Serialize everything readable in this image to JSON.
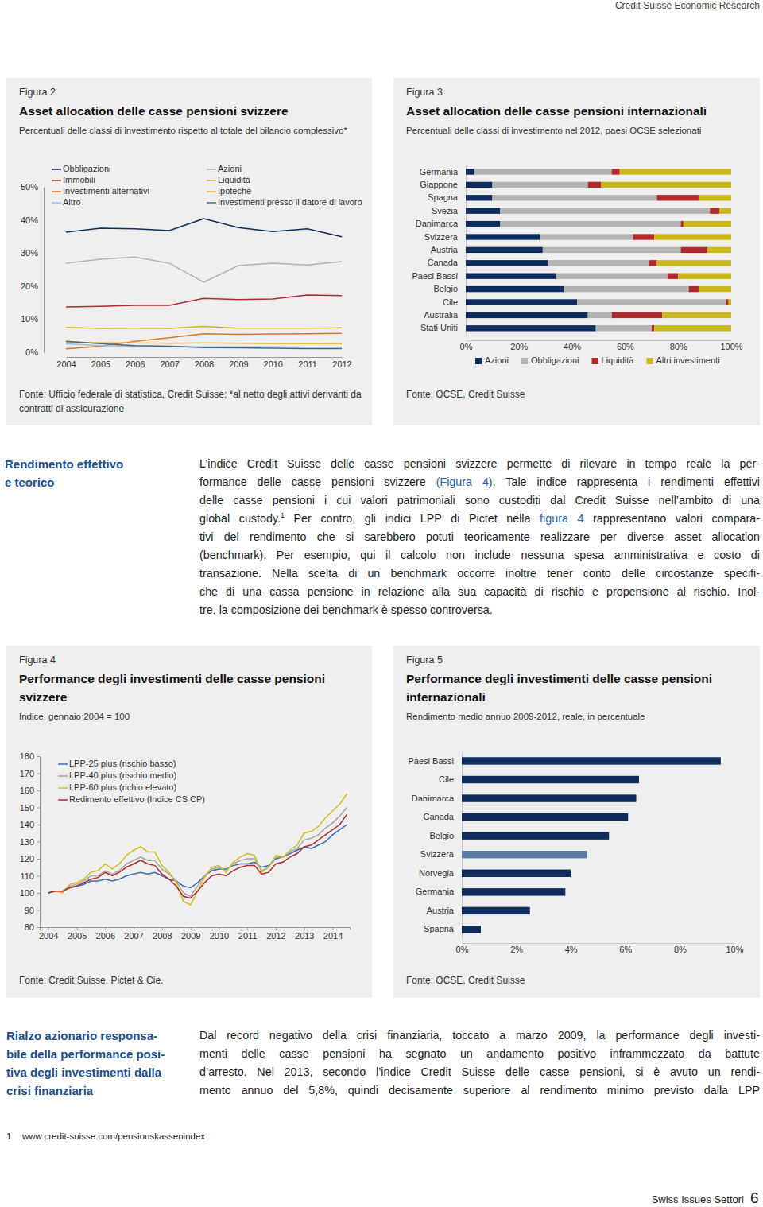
{
  "header": {
    "text": "Credit Suisse Economic Research"
  },
  "chart_data": [
    {
      "type": "line",
      "figure": "Figura 2",
      "title": [
        "Asset allocation delle casse pensioni svizzere"
      ],
      "subtitle": "Percentuali delle classi di investimento rispetto al totale del bilancio complessivo*",
      "source": [
        "Fonte: Ufficio federale di statistica, Credit Suisse; *al netto degli attivi derivanti da",
        "contratti di assicurazione"
      ],
      "categories": [
        "2004",
        "2005",
        "2006",
        "2007",
        "2008",
        "2009",
        "2010",
        "2011",
        "2012"
      ],
      "ylim": [
        0,
        50
      ],
      "yticks": [
        {
          "value": 0,
          "label": "0%"
        },
        {
          "value": 10,
          "label": "10%"
        },
        {
          "value": 20,
          "label": "20%"
        },
        {
          "value": 30,
          "label": "30%"
        },
        {
          "value": 40,
          "label": "40%"
        },
        {
          "value": 50,
          "label": "50%"
        }
      ],
      "legend": "top",
      "series": [
        {
          "name": "Obbligazioni",
          "color": "#0e2c5c",
          "values": [
            36.3,
            37.5,
            37.3,
            36.8,
            40.4,
            37.7,
            36.5,
            37.3,
            34.9
          ]
        },
        {
          "name": "Immobili",
          "color": "#b12a2f",
          "values": [
            13.7,
            13.9,
            14.2,
            14.2,
            16.3,
            15.9,
            16.1,
            17.3,
            17.1
          ]
        },
        {
          "name": "Investimenti alternativi",
          "color": "#e2731e",
          "values": [
            1.0,
            1.8,
            3.3,
            4.4,
            5.6,
            5.4,
            5.5,
            5.6,
            5.7
          ]
        },
        {
          "name": "Altro",
          "color": "#8fc3df",
          "values": [
            2.5,
            2.0,
            1.8,
            1.7,
            1.6,
            1.6,
            1.6,
            1.5,
            1.5
          ]
        },
        {
          "name": "Azioni",
          "color": "#b3b3b3",
          "values": [
            26.9,
            28.1,
            28.8,
            26.9,
            21.2,
            26.2,
            26.9,
            26.4,
            27.4
          ]
        },
        {
          "name": "Liquidità",
          "color": "#c9b81c",
          "values": [
            7.5,
            7.2,
            7.3,
            7.2,
            7.8,
            7.3,
            7.3,
            7.3,
            7.4
          ]
        },
        {
          "name": "Ipoteche",
          "color": "#f2b63c",
          "values": [
            3.0,
            2.9,
            2.8,
            2.7,
            2.8,
            2.7,
            2.6,
            2.6,
            2.5
          ]
        },
        {
          "name": "Investimenti presso il datore di lavoro",
          "color": "#53657d",
          "values": [
            3.3,
            2.6,
            2.0,
            1.8,
            1.4,
            1.3,
            1.2,
            1.1,
            1.1
          ]
        }
      ]
    },
    {
      "type": "bar",
      "orientation": "horizontal",
      "stacked": true,
      "figure": "Figura 3",
      "title": [
        "Asset allocation delle casse pensioni internazionali"
      ],
      "subtitle": "Percentuali delle classi di investimento nel 2012, paesi OCSE selezionati",
      "source": [
        "Fonte: OCSE, Credit Suisse"
      ],
      "categories": [
        "Germania",
        "Giappone",
        "Spagna",
        "Svezia",
        "Danimarca",
        "Svizzera",
        "Austria",
        "Canada",
        "Paesi Bassi",
        "Belgio",
        "Cile",
        "Australia",
        "Stati Uniti"
      ],
      "xlim": [
        0,
        100
      ],
      "xticks": [
        {
          "value": 0,
          "label": "0%"
        },
        {
          "value": 20,
          "label": "20%"
        },
        {
          "value": 40,
          "label": "40%"
        },
        {
          "value": 60,
          "label": "60%"
        },
        {
          "value": 80,
          "label": "80%"
        },
        {
          "value": 100,
          "label": "100%"
        }
      ],
      "legend": "bottom",
      "series": [
        {
          "name": "Azioni",
          "color": "#0e2c5c",
          "values": [
            3,
            10,
            10,
            13,
            13,
            28,
            29,
            31,
            34,
            37,
            42,
            46,
            49
          ]
        },
        {
          "name": "Obbligazioni",
          "color": "#b3b3b3",
          "values": [
            52,
            36,
            62,
            79,
            68,
            35,
            52,
            38,
            42,
            47,
            56,
            9,
            21
          ]
        },
        {
          "name": "Liquidità",
          "color": "#b12a2f",
          "values": [
            3,
            5,
            16,
            3.5,
            1,
            8,
            10,
            3,
            4,
            4,
            1,
            19,
            1
          ]
        },
        {
          "name": "Altri investimenti",
          "color": "#c9b81c",
          "values": [
            42,
            49,
            12,
            4.5,
            18,
            29,
            9,
            28,
            20,
            12,
            1,
            26,
            29
          ]
        }
      ]
    },
    {
      "type": "line",
      "figure": "Figura 4",
      "title": [
        "Performance degli investimenti delle casse pensioni",
        "svizzere"
      ],
      "subtitle": "Indice, gennaio 2004 = 100",
      "source": [
        "Fonte: Credit Suisse, Pictet & Cie."
      ],
      "x": [
        2004,
        2004.25,
        2004.5,
        2004.75,
        2005,
        2005.25,
        2005.5,
        2005.75,
        2006,
        2006.25,
        2006.5,
        2006.75,
        2007,
        2007.25,
        2007.5,
        2007.75,
        2008,
        2008.25,
        2008.5,
        2008.75,
        2009,
        2009.25,
        2009.5,
        2009.75,
        2010,
        2010.25,
        2010.5,
        2010.75,
        2011,
        2011.25,
        2011.5,
        2011.75,
        2012,
        2012.25,
        2012.5,
        2012.75,
        2013,
        2013.25,
        2013.5,
        2013.75,
        2014,
        2014.25,
        2014.5
      ],
      "xlim": [
        2003.7,
        2014.6
      ],
      "xticks": [
        2004,
        2005,
        2006,
        2007,
        2008,
        2009,
        2010,
        2011,
        2012,
        2013,
        2014
      ],
      "ylim": [
        80,
        180
      ],
      "yticks": [
        80,
        90,
        100,
        110,
        120,
        130,
        140,
        150,
        160,
        170,
        180
      ],
      "legend": "top-left",
      "series": [
        {
          "name": "LPP-25 plus (rischio basso)",
          "color": "#3a6bb5",
          "values": [
            100,
            101,
            101,
            103,
            104,
            105,
            107,
            107,
            108,
            107,
            108,
            110,
            111,
            112,
            111,
            112,
            110,
            108,
            107,
            104,
            103,
            106,
            110,
            113,
            114,
            114,
            116,
            117,
            117,
            118,
            115,
            116,
            120,
            121,
            123,
            125,
            127,
            126,
            128,
            130,
            134,
            137,
            140
          ]
        },
        {
          "name": "LPP-40 plus (rischio medio)",
          "color": "#a6a6a6",
          "values": [
            100,
            101,
            101,
            104,
            105,
            107,
            110,
            110,
            113,
            111,
            113,
            117,
            119,
            121,
            119,
            119,
            114,
            111,
            107,
            100,
            98,
            104,
            110,
            114,
            115,
            113,
            117,
            119,
            120,
            120,
            113,
            115,
            121,
            121,
            124,
            126,
            131,
            132,
            134,
            138,
            141,
            145,
            150
          ]
        },
        {
          "name": "LPP-60 plus (richio elevato)",
          "color": "#d2c11c",
          "values": [
            100,
            101,
            100,
            105,
            106,
            108,
            112,
            113,
            117,
            114,
            117,
            122,
            125,
            127,
            124,
            124,
            116,
            112,
            106,
            95,
            93,
            101,
            109,
            115,
            116,
            112,
            118,
            121,
            123,
            122,
            112,
            115,
            122,
            121,
            125,
            128,
            135,
            136,
            139,
            144,
            148,
            152,
            158
          ]
        },
        {
          "name": "Redimento effettivo (Indice CS CP)",
          "color": "#b12a2f",
          "values": [
            100,
            101,
            101,
            103,
            104,
            106,
            108,
            109,
            112,
            110,
            112,
            115,
            117,
            119,
            117,
            116,
            111,
            108,
            104,
            98,
            97,
            101,
            106,
            110,
            111,
            110,
            113,
            115,
            116,
            116,
            111,
            112,
            117,
            118,
            121,
            123,
            127,
            128,
            131,
            134,
            137,
            140,
            146
          ]
        }
      ]
    },
    {
      "type": "bar",
      "orientation": "horizontal",
      "figure": "Figura 5",
      "title": [
        "Performance degli investimenti delle casse pensioni",
        "internazionali"
      ],
      "subtitle": "Rendimento medio annuo 2009-2012, reale, in percentuale",
      "source": [
        "Fonte: OCSE, Credit Suisse"
      ],
      "categories": [
        "Paesi Bassi",
        "Cile",
        "Danimarca",
        "Canada",
        "Belgio",
        "Svizzera",
        "Norvegia",
        "Germania",
        "Austria",
        "Spagna"
      ],
      "values": [
        9.5,
        6.5,
        6.4,
        6.1,
        5.4,
        4.6,
        4.0,
        3.8,
        2.5,
        0.7
      ],
      "colors": [
        "#0e2c5c",
        "#0e2c5c",
        "#0e2c5c",
        "#0e2c5c",
        "#0e2c5c",
        "#5c7ca8",
        "#0e2c5c",
        "#0e2c5c",
        "#0e2c5c",
        "#0e2c5c"
      ],
      "xlim": [
        0,
        10
      ],
      "xticks": [
        {
          "value": 0,
          "label": "0%"
        },
        {
          "value": 2,
          "label": "2%"
        },
        {
          "value": 4,
          "label": "4%"
        },
        {
          "value": 6,
          "label": "6%"
        },
        {
          "value": 8,
          "label": "8%"
        },
        {
          "value": 10,
          "label": "10%"
        }
      ]
    }
  ],
  "sections": [
    {
      "heading": [
        "Rendimento effettivo",
        "e teorico"
      ],
      "lines": [
        [
          {
            "text": "L’indice Credit Suisse delle casse pensioni svizzere permette di rilevare in tempo reale la per-",
            "kind": "plain"
          }
        ],
        [
          {
            "text": "formance delle casse pensioni svizzere ",
            "kind": "plain"
          },
          {
            "text": "(Figura 4)",
            "kind": "ref"
          },
          {
            "text": ". Tale indice rappresenta i rendimenti effettivi",
            "kind": "plain"
          }
        ],
        [
          {
            "text": "delle casse pensioni i cui valori patrimoniali sono custoditi dal Credit Suisse nell’ambito di una",
            "kind": "plain"
          }
        ],
        [
          {
            "text": "global custody.",
            "kind": "plain"
          },
          {
            "text": "1",
            "kind": "sup"
          },
          {
            "text": " Per contro, gli indici LPP di Pictet nella ",
            "kind": "plain"
          },
          {
            "text": "figura 4",
            "kind": "ref"
          },
          {
            "text": " rappresentano valori compara-",
            "kind": "plain"
          }
        ],
        [
          {
            "text": "tivi del rendimento che si sarebbero potuti teoricamente realizzare per diverse asset allocation",
            "kind": "plain"
          }
        ],
        [
          {
            "text": "(benchmark). Per esempio, qui il calcolo non include nessuna spesa amministrativa e costo di",
            "kind": "plain"
          }
        ],
        [
          {
            "text": "transazione. Nella scelta di un benchmark occorre inoltre tener conto delle circostanze specifi-",
            "kind": "plain"
          }
        ],
        [
          {
            "text": "che di una cassa pensione in relazione alla sua capacità di rischio e propensione al rischio. Inol-",
            "kind": "plain"
          }
        ],
        [
          {
            "text": "tre, la composizione dei benchmark è spesso controversa.",
            "kind": "plain"
          }
        ]
      ]
    },
    {
      "heading": [
        "Rialzo azionario responsa-",
        "bile della performance posi-",
        "tiva degli investimenti dalla",
        "crisi finanziaria"
      ],
      "continues": true,
      "lines": [
        [
          {
            "text": "Dal record negativo della crisi finanziaria, toccato a marzo 2009, la performance degli investi-",
            "kind": "plain"
          }
        ],
        [
          {
            "text": "menti delle casse pensioni ha segnato un andamento positivo inframmezzato da battute",
            "kind": "plain"
          }
        ],
        [
          {
            "text": "d’arresto. Nel 2013, secondo l’indice Credit Suisse delle casse pensioni, si è avuto un rendi-",
            "kind": "plain"
          }
        ],
        [
          {
            "text": "mento annuo del 5,8%, quindi decisamente superiore al rendimento minimo previsto dalla LPP",
            "kind": "plain"
          }
        ]
      ]
    }
  ],
  "footnote": {
    "number": "1",
    "text": "www.credit-suisse.com/pensionskassenindex"
  },
  "footer": {
    "text": "Swiss Issues Settori",
    "page": "6"
  }
}
